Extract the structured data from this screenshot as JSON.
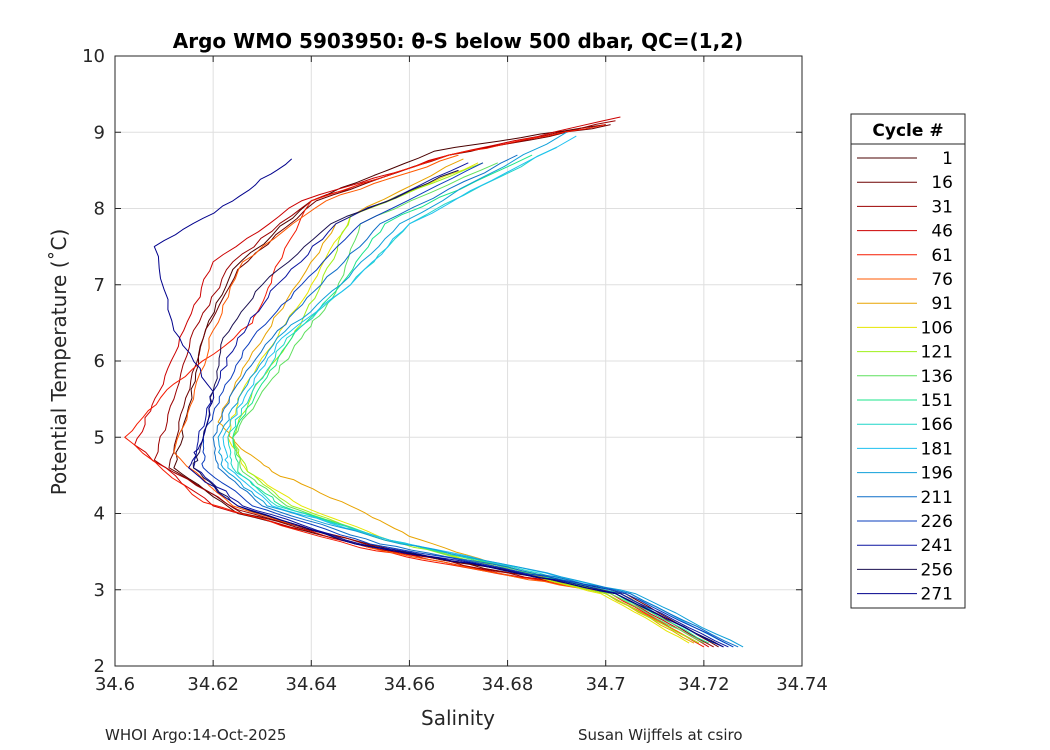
{
  "chart_data": {
    "type": "line",
    "title": "Argo WMO 5903950: θ-S below 500 dbar,  QC=(1,2)",
    "xlabel": "Salinity",
    "ylabel": "Potential Temperature (˚C)",
    "xlim": [
      34.6,
      34.74
    ],
    "ylim": [
      2,
      10
    ],
    "xticks": [
      "34.6",
      "34.62",
      "34.64",
      "34.66",
      "34.68",
      "34.7",
      "34.72",
      "34.74"
    ],
    "yticks": [
      "2",
      "3",
      "4",
      "5",
      "6",
      "7",
      "8",
      "9",
      "10"
    ],
    "grid": true,
    "legend_title": "Cycle #",
    "legend_position": "right",
    "series": [
      {
        "name": "1",
        "color": "#4a0000",
        "salinity": [
          34.702,
          34.676,
          34.652,
          34.625,
          34.612,
          34.615,
          34.618,
          34.624,
          34.64,
          34.665,
          34.7
        ],
        "temperature": [
          3.0,
          3.3,
          3.55,
          4.0,
          4.6,
          5.4,
          6.3,
          7.2,
          8.1,
          8.75,
          9.1
        ]
      },
      {
        "name": "16",
        "color": "#6d0000",
        "salinity": [
          34.723,
          34.704,
          34.678,
          34.655,
          34.626,
          34.611,
          34.614,
          34.618,
          34.625,
          34.641,
          34.668,
          34.701
        ],
        "temperature": [
          2.25,
          2.95,
          3.25,
          3.55,
          4.0,
          4.6,
          5.4,
          6.3,
          7.2,
          8.1,
          8.7,
          9.1
        ]
      },
      {
        "name": "31",
        "color": "#9c0000",
        "salinity": [
          34.722,
          34.703,
          34.677,
          34.654,
          34.625,
          34.608,
          34.612,
          34.616,
          34.624,
          34.64,
          34.668,
          34.702
        ],
        "temperature": [
          2.25,
          2.95,
          3.25,
          3.55,
          4.05,
          4.7,
          5.5,
          6.4,
          7.3,
          8.1,
          8.7,
          9.15
        ]
      },
      {
        "name": "46",
        "color": "#cc0000",
        "salinity": [
          34.721,
          34.702,
          34.676,
          34.652,
          34.62,
          34.604,
          34.609,
          34.614,
          34.62,
          34.638,
          34.668,
          34.703
        ],
        "temperature": [
          2.25,
          2.95,
          3.25,
          3.55,
          4.1,
          4.9,
          5.6,
          6.4,
          7.3,
          8.1,
          8.7,
          9.2
        ]
      },
      {
        "name": "61",
        "color": "#f51a00",
        "salinity": [
          34.72,
          34.701,
          34.675,
          34.65,
          34.618,
          34.602,
          34.612,
          34.628,
          34.632,
          34.64,
          34.668,
          34.7
        ],
        "temperature": [
          2.25,
          2.95,
          3.25,
          3.55,
          4.15,
          5.0,
          5.7,
          6.5,
          7.1,
          8.1,
          8.7,
          9.1
        ]
      },
      {
        "name": "76",
        "color": "#ff5a00",
        "salinity": [
          34.719,
          34.7,
          34.675,
          34.652,
          34.624,
          34.612,
          34.616,
          34.62,
          34.626,
          34.643,
          34.67
        ],
        "temperature": [
          2.3,
          2.95,
          3.25,
          3.55,
          4.1,
          4.8,
          5.5,
          6.4,
          7.3,
          8.1,
          8.7
        ]
      },
      {
        "name": "91",
        "color": "#e8a300",
        "salinity": [
          34.718,
          34.7,
          34.679,
          34.66,
          34.648,
          34.632,
          34.625,
          34.621,
          34.626,
          34.635,
          34.645,
          34.671
        ],
        "temperature": [
          2.3,
          2.95,
          3.3,
          3.7,
          4.1,
          4.55,
          4.9,
          5.2,
          5.9,
          6.8,
          7.8,
          8.65
        ]
      },
      {
        "name": "106",
        "color": "#e6e600",
        "salinity": [
          34.717,
          34.699,
          34.678,
          34.656,
          34.638,
          34.627,
          34.623,
          34.625,
          34.632,
          34.64,
          34.648,
          34.674
        ],
        "temperature": [
          2.3,
          2.95,
          3.3,
          3.65,
          4.1,
          4.55,
          5.0,
          5.5,
          6.2,
          7.0,
          7.9,
          8.6
        ]
      },
      {
        "name": "121",
        "color": "#9ef01a",
        "salinity": [
          34.719,
          34.7,
          34.678,
          34.655,
          34.636,
          34.627,
          34.624,
          34.628,
          34.636,
          34.642,
          34.648,
          34.675
        ],
        "temperature": [
          2.3,
          2.95,
          3.3,
          3.65,
          4.1,
          4.55,
          5.0,
          5.6,
          6.3,
          7.0,
          7.9,
          8.6
        ]
      },
      {
        "name": "136",
        "color": "#5fe05f",
        "salinity": [
          34.72,
          34.701,
          34.679,
          34.656,
          34.635,
          34.626,
          34.624,
          34.63,
          34.638,
          34.645,
          34.65,
          34.678
        ],
        "temperature": [
          2.3,
          2.95,
          3.3,
          3.65,
          4.1,
          4.55,
          5.0,
          5.6,
          6.3,
          6.9,
          7.8,
          8.6
        ]
      },
      {
        "name": "151",
        "color": "#1be58b",
        "salinity": [
          34.721,
          34.702,
          34.68,
          34.656,
          34.634,
          34.625,
          34.624,
          34.629,
          34.636,
          34.646,
          34.655,
          34.685
        ],
        "temperature": [
          2.3,
          2.95,
          3.3,
          3.65,
          4.1,
          4.55,
          5.0,
          5.6,
          6.3,
          7.0,
          7.8,
          8.7
        ]
      },
      {
        "name": "166",
        "color": "#1fd6c8",
        "salinity": [
          34.722,
          34.703,
          34.681,
          34.656,
          34.633,
          34.624,
          34.623,
          34.628,
          34.635,
          34.648,
          34.66,
          34.69
        ],
        "temperature": [
          2.3,
          2.95,
          3.3,
          3.65,
          4.1,
          4.6,
          5.0,
          5.6,
          6.3,
          7.0,
          7.8,
          8.8
        ]
      },
      {
        "name": "181",
        "color": "#1ec0f0",
        "salinity": [
          34.726,
          34.705,
          34.682,
          34.656,
          34.632,
          34.623,
          34.622,
          34.627,
          34.634,
          34.648,
          34.66,
          34.694
        ],
        "temperature": [
          2.25,
          2.95,
          3.3,
          3.65,
          4.1,
          4.6,
          5.0,
          5.6,
          6.3,
          7.0,
          7.8,
          8.95
        ]
      },
      {
        "name": "196",
        "color": "#0f9fd9",
        "salinity": [
          34.728,
          34.706,
          34.682,
          34.655,
          34.631,
          34.622,
          34.621,
          34.626,
          34.633,
          34.646,
          34.658,
          34.692
        ],
        "temperature": [
          2.25,
          2.95,
          3.3,
          3.65,
          4.1,
          4.6,
          5.0,
          5.6,
          6.3,
          7.0,
          7.8,
          9.0
        ]
      },
      {
        "name": "211",
        "color": "#0f6fc8",
        "salinity": [
          34.727,
          34.705,
          34.68,
          34.654,
          34.63,
          34.621,
          34.62,
          34.624,
          34.632,
          34.642,
          34.654,
          34.682
        ],
        "temperature": [
          2.25,
          2.95,
          3.3,
          3.6,
          4.1,
          4.6,
          5.0,
          5.6,
          6.3,
          7.0,
          7.8,
          8.7
        ]
      },
      {
        "name": "226",
        "color": "#0a3cbe",
        "salinity": [
          34.726,
          34.704,
          34.678,
          34.652,
          34.628,
          34.618,
          34.618,
          34.622,
          34.628,
          34.638,
          34.65,
          34.675
        ],
        "temperature": [
          2.25,
          2.95,
          3.3,
          3.6,
          4.1,
          4.6,
          5.0,
          5.6,
          6.3,
          7.0,
          7.8,
          8.6
        ]
      },
      {
        "name": "241",
        "color": "#0a14a0",
        "salinity": [
          34.725,
          34.703,
          34.677,
          34.65,
          34.626,
          34.616,
          34.617,
          34.62,
          34.625,
          34.633,
          34.645,
          34.672
        ],
        "temperature": [
          2.25,
          2.95,
          3.3,
          3.6,
          4.1,
          4.6,
          5.0,
          5.6,
          6.3,
          7.0,
          7.8,
          8.6
        ]
      },
      {
        "name": "256",
        "color": "#1a0f50",
        "salinity": [
          34.724,
          34.702,
          34.676,
          34.649,
          34.625,
          34.616,
          34.618,
          34.62,
          34.622,
          34.63,
          34.644,
          34.67
        ],
        "temperature": [
          2.25,
          2.95,
          3.3,
          3.6,
          4.1,
          4.6,
          5.0,
          5.6,
          6.3,
          7.0,
          7.8,
          8.5
        ]
      },
      {
        "name": "271",
        "color": "#00008c",
        "salinity": [
          34.724,
          34.702,
          34.676,
          34.649,
          34.625,
          34.615,
          34.618,
          34.62,
          34.612,
          34.608,
          34.624,
          34.636
        ],
        "temperature": [
          2.25,
          2.95,
          3.3,
          3.6,
          4.1,
          4.6,
          5.0,
          5.6,
          6.4,
          7.5,
          8.1,
          8.65
        ]
      }
    ]
  },
  "footer": {
    "left": "WHOI Argo:14-Oct-2025",
    "right": "Susan Wijffels at csiro"
  }
}
